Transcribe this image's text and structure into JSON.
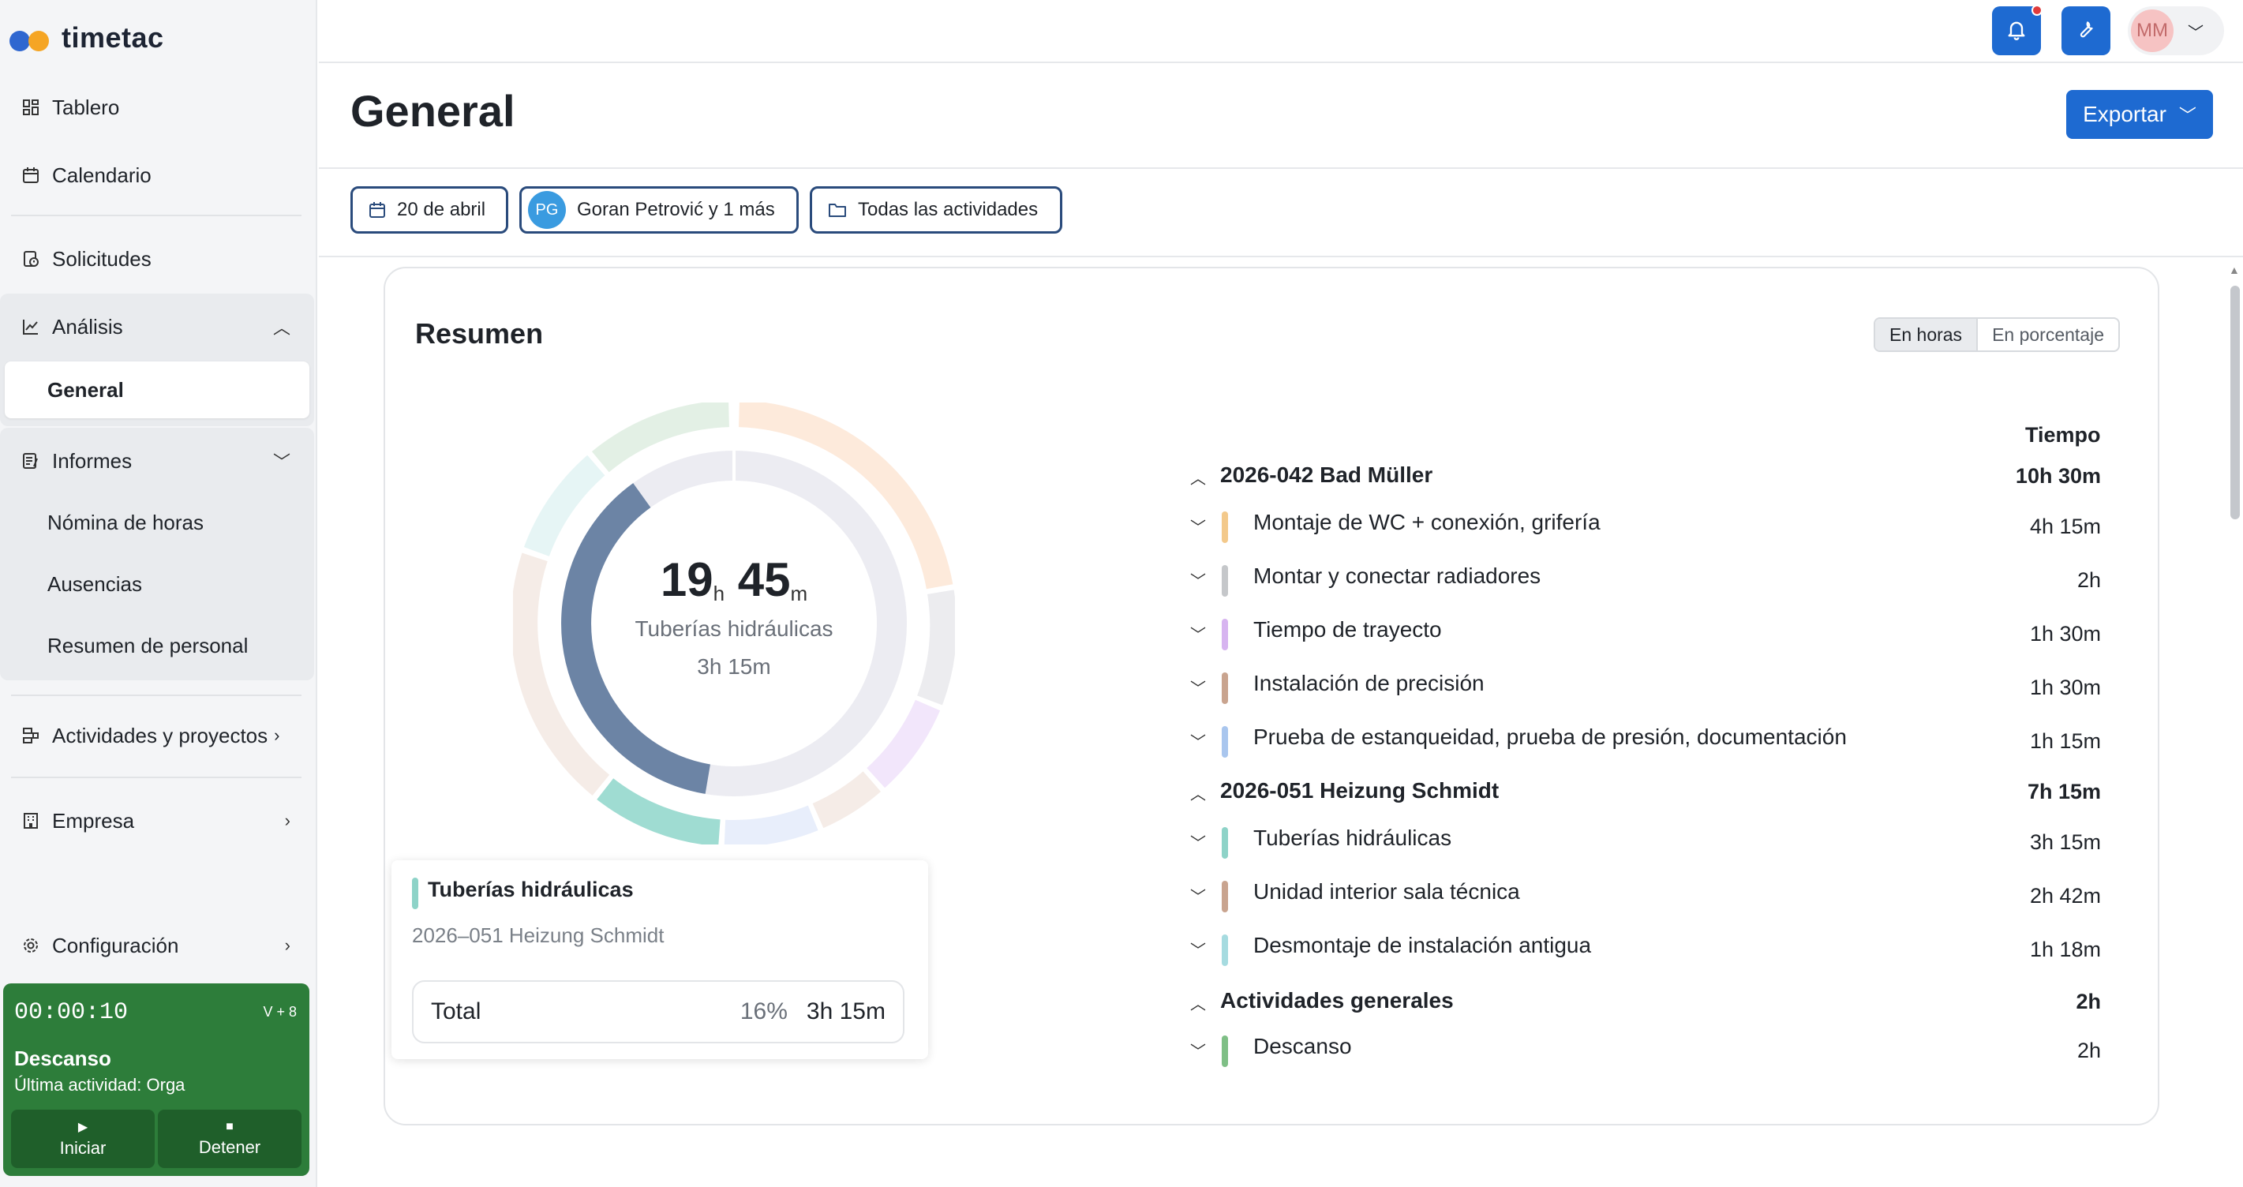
{
  "app": {
    "name": "timetac"
  },
  "sidebar": {
    "tablero": "Tablero",
    "calendario": "Calendario",
    "solicitudes": "Solicitudes",
    "analisis": "Análisis",
    "general": "General",
    "informes": "Informes",
    "nomina": "Nómina de horas",
    "ausencias": "Ausencias",
    "resumen_personal": "Resumen de personal",
    "actividades": "Actividades y proyectos",
    "empresa": "Empresa",
    "configuracion": "Configuración"
  },
  "timer": {
    "time": "00:00:10",
    "keys": "V + 8",
    "status": "Descanso",
    "last_activity": "Última actividad: Orga",
    "start": "Iniciar",
    "stop": "Detener"
  },
  "topbar": {
    "avatar_initials": "MM"
  },
  "page": {
    "title": "General",
    "export": "Exportar"
  },
  "filters": {
    "date": "20 de abril",
    "people_initials": "PG",
    "people": "Goran Petrović y 1 más",
    "activities": "Todas las actividades"
  },
  "card": {
    "title": "Resumen",
    "toggle_hours": "En horas",
    "toggle_percent": "En porcentaje",
    "donut": {
      "hours": "19",
      "hours_unit": "h",
      "minutes": "45",
      "minutes_unit": "m",
      "selected_name": "Tuberías hidráulicas",
      "selected_time": "3h 15m"
    },
    "tooltip": {
      "title": "Tuberías hidráulicas",
      "project": "2026–051 Heizung Schmidt",
      "total_label": "Total",
      "percent": "16%",
      "time": "3h 15m"
    },
    "table_header": "Tiempo",
    "groups": [
      {
        "name": "2026-042 Bad Müller",
        "time": "10h 30m",
        "items": [
          {
            "name": "Montaje de WC + conexión, grifería",
            "time": "4h 15m",
            "color": "#f3c98b"
          },
          {
            "name": "Montar y conectar radiadores",
            "time": "2h",
            "color": "#c5c7ca"
          },
          {
            "name": "Tiempo de trayecto",
            "time": "1h 30m",
            "color": "#d7b4f0"
          },
          {
            "name": "Instalación de precisión",
            "time": "1h 30m",
            "color": "#c9a48f"
          },
          {
            "name": "Prueba de estanqueidad, prueba de presión, documentación",
            "time": "1h 15m",
            "color": "#a9c6ee"
          }
        ]
      },
      {
        "name": "2026-051 Heizung Schmidt",
        "time": "7h 15m",
        "items": [
          {
            "name": "Tuberías hidráulicas",
            "time": "3h 15m",
            "color": "#8ed3c8"
          },
          {
            "name": "Unidad interior sala técnica",
            "time": "2h 42m",
            "color": "#c9a48f"
          },
          {
            "name": "Desmontaje de instalación antigua",
            "time": "1h 18m",
            "color": "#a6dbe0"
          }
        ]
      },
      {
        "name": "Actividades generales",
        "time": "2h",
        "items": [
          {
            "name": "Descanso",
            "time": "2h",
            "color": "#7fbf86"
          }
        ]
      }
    ]
  }
}
